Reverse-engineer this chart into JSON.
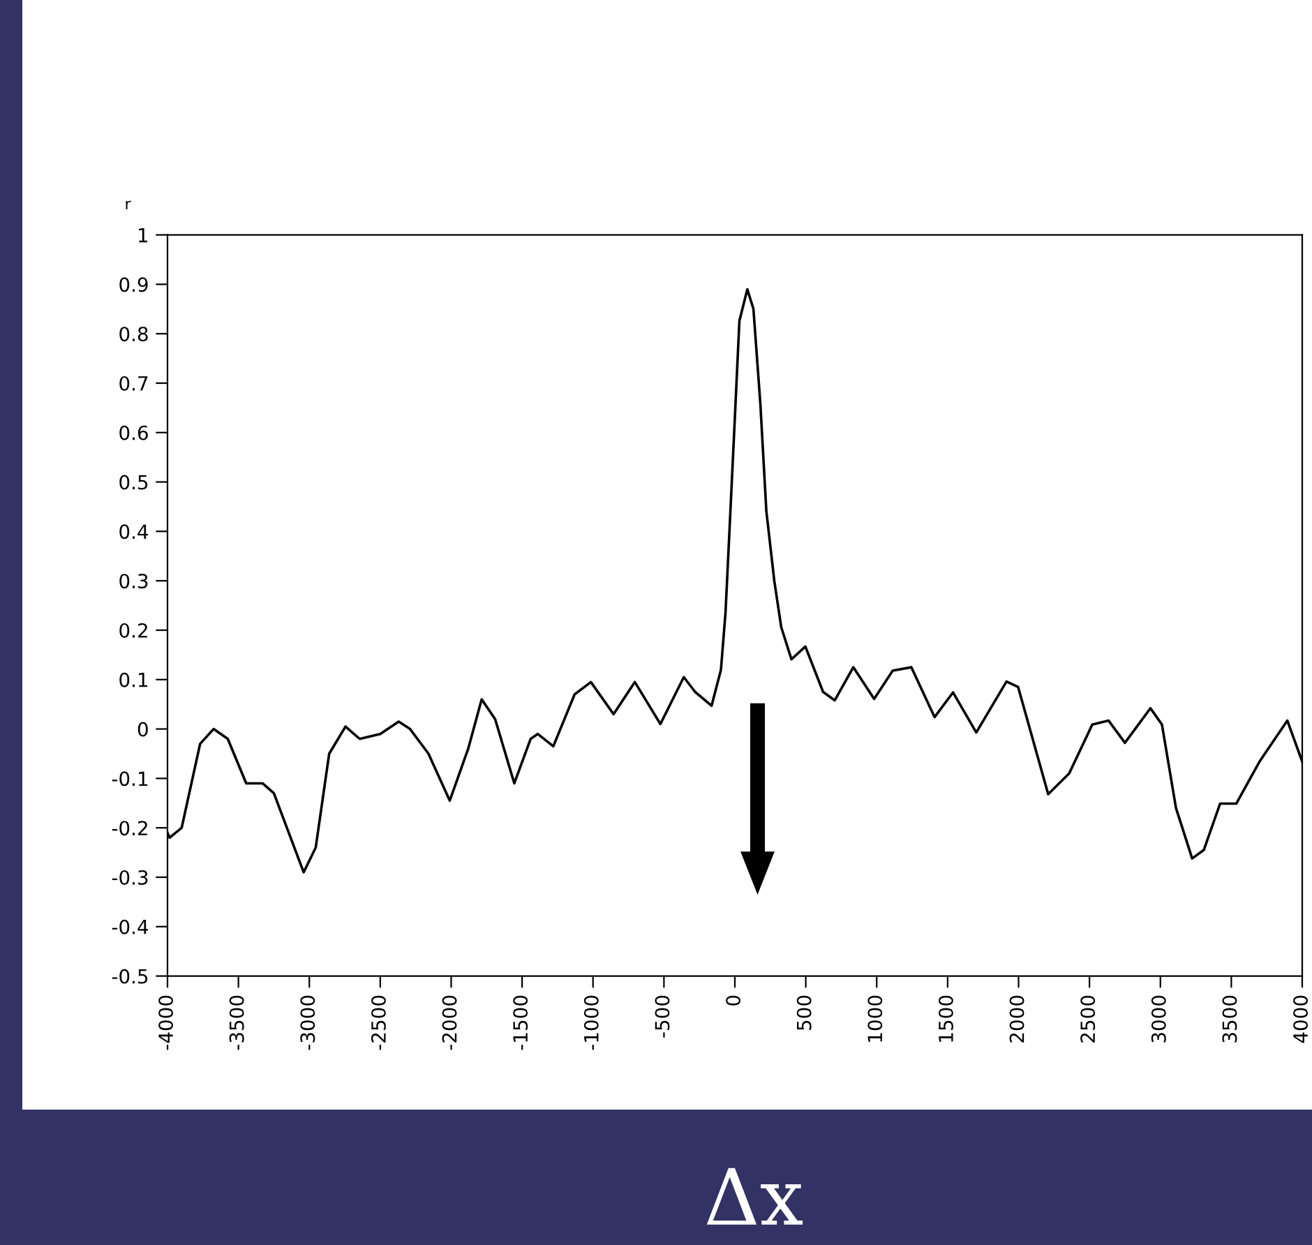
{
  "chart_data": {
    "type": "line",
    "ylabel": "r",
    "xlabel": "Δx",
    "xlim": [
      -4000,
      4000
    ],
    "ylim": [
      -0.5,
      1
    ],
    "xticks": [
      -4000,
      -3500,
      -3000,
      -2500,
      -2000,
      -1500,
      -1000,
      -500,
      0,
      500,
      1000,
      1500,
      2000,
      2500,
      3000,
      3500,
      4000
    ],
    "yticks": [
      -0.5,
      -0.4,
      -0.3,
      -0.2,
      -0.1,
      0,
      0.1,
      0.2,
      0.3,
      0.4,
      0.5,
      0.6,
      0.7,
      0.8,
      0.9,
      1
    ],
    "grid": false,
    "legend": false,
    "series": [
      {
        "color": "#000000",
        "x": [
          -4000,
          -3985,
          -3900,
          -3770,
          -3675,
          -3575,
          -3445,
          -3330,
          -3250,
          -3040,
          -2955,
          -2860,
          -2745,
          -2645,
          -2500,
          -2370,
          -2290,
          -2160,
          -2010,
          -1880,
          -1785,
          -1690,
          -1555,
          -1440,
          -1390,
          -1280,
          -1130,
          -1015,
          -855,
          -705,
          -525,
          -360,
          -280,
          -164,
          -98,
          -66,
          -39,
          0,
          32,
          88,
          131,
          180,
          222,
          278,
          327,
          399,
          497,
          622,
          704,
          835,
          982,
          1113,
          1244,
          1408,
          1538,
          1702,
          1915,
          1997,
          2209,
          2357,
          2520,
          2635,
          2750,
          2930,
          3011,
          3110,
          3224,
          3306,
          3421,
          3535,
          3699,
          3895,
          4000
        ],
        "values": [
          -0.21,
          -0.22,
          -0.2,
          -0.03,
          0,
          -0.02,
          -0.11,
          -0.11,
          -0.13,
          -0.29,
          -0.24,
          -0.05,
          0.005,
          -0.02,
          -0.01,
          0.015,
          0,
          -0.05,
          -0.145,
          -0.04,
          0.06,
          0.02,
          -0.11,
          -0.02,
          -0.01,
          -0.035,
          0.07,
          0.095,
          0.03,
          0.095,
          0.01,
          0.105,
          0.075,
          0.047,
          0.12,
          0.235,
          0.395,
          0.63,
          0.826,
          0.89,
          0.85,
          0.657,
          0.441,
          0.3,
          0.206,
          0.141,
          0.167,
          0.075,
          0.058,
          0.125,
          0.061,
          0.118,
          0.125,
          0.024,
          0.074,
          -0.007,
          0.096,
          0.085,
          -0.132,
          -0.09,
          0.009,
          0.017,
          -0.028,
          0.042,
          0.009,
          -0.16,
          -0.262,
          -0.245,
          -0.151,
          -0.151,
          -0.066,
          0.017,
          -0.066
        ]
      }
    ]
  }
}
